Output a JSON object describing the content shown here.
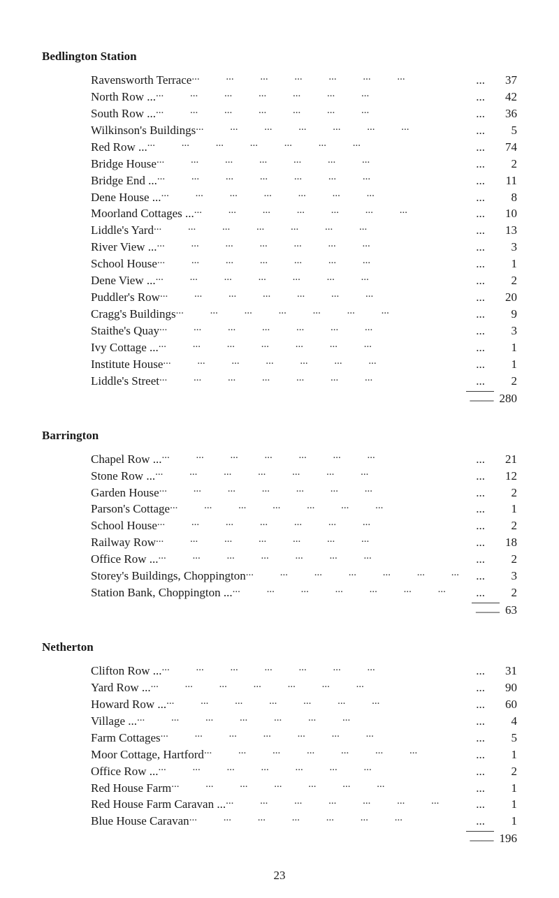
{
  "page_number": "23",
  "sections": [
    {
      "title": "Bedlington Station",
      "subtotal": "280",
      "items": [
        {
          "label": "Ravensworth Terrace",
          "value": "37"
        },
        {
          "label": "North Row ...",
          "value": "42"
        },
        {
          "label": "South Row ...",
          "value": "36"
        },
        {
          "label": "Wilkinson's Buildings",
          "value": "5"
        },
        {
          "label": "Red Row ...",
          "value": "74"
        },
        {
          "label": "Bridge House",
          "value": "2"
        },
        {
          "label": "Bridge End ...",
          "value": "11"
        },
        {
          "label": "Dene House ...",
          "value": "8"
        },
        {
          "label": "Moorland Cottages ...",
          "value": "10"
        },
        {
          "label": "Liddle's Yard",
          "value": "13"
        },
        {
          "label": "River View ...",
          "value": "3"
        },
        {
          "label": "School House",
          "value": "1"
        },
        {
          "label": "Dene View ...",
          "value": "2"
        },
        {
          "label": "Puddler's Row",
          "value": "20"
        },
        {
          "label": "Cragg's Buildings",
          "value": "9"
        },
        {
          "label": "Staithe's Quay",
          "value": "3"
        },
        {
          "label": "Ivy Cottage ...",
          "value": "1"
        },
        {
          "label": "Institute House",
          "value": "1"
        },
        {
          "label": "Liddle's Street",
          "value": "2"
        }
      ]
    },
    {
      "title": "Barrington",
      "subtotal": "63",
      "items": [
        {
          "label": "Chapel Row ...",
          "value": "21"
        },
        {
          "label": "Stone Row ...",
          "value": "12"
        },
        {
          "label": "Garden House",
          "value": "2"
        },
        {
          "label": "Parson's Cottage",
          "value": "1"
        },
        {
          "label": "School House",
          "value": "2"
        },
        {
          "label": "Railway Row",
          "value": "18"
        },
        {
          "label": "Office Row ...",
          "value": "2"
        },
        {
          "label": "Storey's Buildings, Choppington",
          "value": "3"
        },
        {
          "label": "Station Bank, Choppington ...",
          "value": "2"
        }
      ]
    },
    {
      "title": "Netherton",
      "subtotal": "196",
      "items": [
        {
          "label": "Clifton Row ...",
          "value": "31"
        },
        {
          "label": "Yard Row ...",
          "value": "90"
        },
        {
          "label": "Howard Row ...",
          "value": "60"
        },
        {
          "label": "Village ...",
          "value": "4"
        },
        {
          "label": "Farm Cottages",
          "value": "5"
        },
        {
          "label": "Moor Cottage, Hartford",
          "value": "1"
        },
        {
          "label": "Office Row ...",
          "value": "2"
        },
        {
          "label": "Red House Farm",
          "value": "1"
        },
        {
          "label": "Red House Farm Caravan ...",
          "value": "1"
        },
        {
          "label": "Blue House Caravan",
          "value": "1"
        }
      ]
    }
  ]
}
